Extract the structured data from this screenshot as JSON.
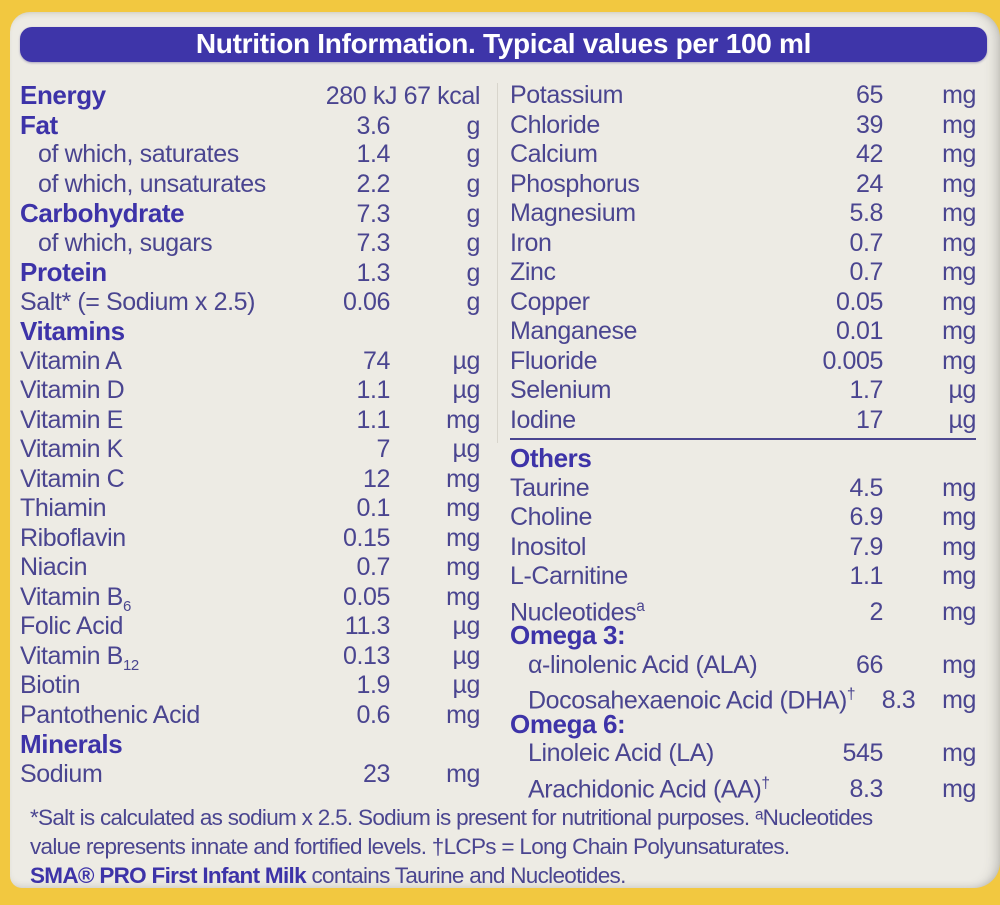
{
  "palette": {
    "packaging_yellow": "#f2c840",
    "label_cream": "#edebe4",
    "header_blue": "#3e35a9",
    "body_text": "#4a4590",
    "bold_text": "#3d33a8"
  },
  "header": {
    "title": "Nutrition Information. Typical values per 100 ml"
  },
  "columns": {
    "left": {
      "rows": [
        {
          "kind": "b",
          "label": "Energy",
          "value": "280 kJ 67 kcal",
          "unit": "",
          "wide": true
        },
        {
          "kind": "b",
          "label": "Fat",
          "value": "3.6",
          "unit": "g"
        },
        {
          "kind": "ind",
          "label": "of which, saturates",
          "value": "1.4",
          "unit": "g"
        },
        {
          "kind": "ind",
          "label": "of which, unsaturates",
          "value": "2.2",
          "unit": "g"
        },
        {
          "kind": "b",
          "label": "Carbohydrate",
          "value": "7.3",
          "unit": "g"
        },
        {
          "kind": "ind",
          "label": "of which, sugars",
          "value": "7.3",
          "unit": "g"
        },
        {
          "kind": "b",
          "label": "Protein",
          "value": "1.3",
          "unit": "g"
        },
        {
          "kind": "",
          "label": "Salt* (= Sodium x 2.5)",
          "value": "0.06",
          "unit": "g"
        },
        {
          "kind": "sec",
          "label": "Vitamins",
          "value": "",
          "unit": ""
        },
        {
          "kind": "",
          "label": "Vitamin A",
          "value": "74",
          "unit": "µg"
        },
        {
          "kind": "",
          "label": "Vitamin D",
          "value": "1.1",
          "unit": "µg"
        },
        {
          "kind": "",
          "label": "Vitamin E",
          "value": "1.1",
          "unit": "mg"
        },
        {
          "kind": "",
          "label": "Vitamin K",
          "value": "7",
          "unit": "µg"
        },
        {
          "kind": "",
          "label": "Vitamin C",
          "value": "12",
          "unit": "mg"
        },
        {
          "kind": "",
          "label": "Thiamin",
          "value": "0.1",
          "unit": "mg"
        },
        {
          "kind": "",
          "label": "Riboflavin",
          "value": "0.15",
          "unit": "mg"
        },
        {
          "kind": "",
          "label": "Niacin",
          "value": "0.7",
          "unit": "mg"
        },
        {
          "kind": "",
          "label": "Vitamin B",
          "sub": "6",
          "value": "0.05",
          "unit": "mg"
        },
        {
          "kind": "",
          "label": "Folic Acid",
          "value": "11.3",
          "unit": "µg"
        },
        {
          "kind": "",
          "label": "Vitamin B",
          "sub": "12",
          "value": "0.13",
          "unit": "µg"
        },
        {
          "kind": "",
          "label": "Biotin",
          "value": "1.9",
          "unit": "µg"
        },
        {
          "kind": "",
          "label": "Pantothenic Acid",
          "value": "0.6",
          "unit": "mg"
        },
        {
          "kind": "sec",
          "label": "Minerals",
          "value": "",
          "unit": ""
        },
        {
          "kind": "",
          "label": "Sodium",
          "value": "23",
          "unit": "mg"
        }
      ]
    },
    "right": {
      "rows": [
        {
          "kind": "",
          "label": "Potassium",
          "value": "65",
          "unit": "mg"
        },
        {
          "kind": "",
          "label": "Chloride",
          "value": "39",
          "unit": "mg"
        },
        {
          "kind": "",
          "label": "Calcium",
          "value": "42",
          "unit": "mg"
        },
        {
          "kind": "",
          "label": "Phosphorus",
          "value": "24",
          "unit": "mg"
        },
        {
          "kind": "",
          "label": "Magnesium",
          "value": "5.8",
          "unit": "mg"
        },
        {
          "kind": "",
          "label": "Iron",
          "value": "0.7",
          "unit": "mg"
        },
        {
          "kind": "",
          "label": "Zinc",
          "value": "0.7",
          "unit": "mg"
        },
        {
          "kind": "",
          "label": "Copper",
          "value": "0.05",
          "unit": "mg"
        },
        {
          "kind": "",
          "label": "Manganese",
          "value": "0.01",
          "unit": "mg"
        },
        {
          "kind": "",
          "label": "Fluoride",
          "value": "0.005",
          "unit": "mg"
        },
        {
          "kind": "",
          "label": "Selenium",
          "value": "1.7",
          "unit": "µg"
        },
        {
          "kind": "",
          "label": "Iodine",
          "value": "17",
          "unit": "µg"
        },
        {
          "kind": "divider"
        },
        {
          "kind": "sec",
          "label": "Others",
          "value": "",
          "unit": ""
        },
        {
          "kind": "",
          "label": "Taurine",
          "value": "4.5",
          "unit": "mg"
        },
        {
          "kind": "",
          "label": "Choline",
          "value": "6.9",
          "unit": "mg"
        },
        {
          "kind": "",
          "label": "Inositol",
          "value": "7.9",
          "unit": "mg"
        },
        {
          "kind": "",
          "label": "L-Carnitine",
          "value": "1.1",
          "unit": "mg"
        },
        {
          "kind": "",
          "label": "Nucleotides",
          "sup": "a",
          "value": "2",
          "unit": "mg"
        },
        {
          "kind": "sec",
          "label": "Omega 3:",
          "value": "",
          "unit": ""
        },
        {
          "kind": "ind",
          "label": "α-linolenic Acid (ALA)",
          "value": "66",
          "unit": "mg"
        },
        {
          "kind": "ind",
          "label": "Docosahexaenoic Acid (DHA)",
          "sup": "†",
          "value": "8.3",
          "unit": "mg"
        },
        {
          "kind": "sec",
          "label": "Omega 6:",
          "value": "",
          "unit": ""
        },
        {
          "kind": "ind",
          "label": "Linoleic Acid (LA)",
          "value": "545",
          "unit": "mg"
        },
        {
          "kind": "ind",
          "label": "Arachidonic Acid (AA)",
          "sup": "†",
          "value": "8.3",
          "unit": "mg"
        }
      ]
    }
  },
  "footnotes": {
    "line1": "*Salt is calculated as sodium x 2.5. Sodium is present for nutritional purposes. ᵃNucleotides",
    "line2": "value represents innate and fortified levels. †LCPs = Long Chain Polyunsaturates.",
    "product_bold": "SMA® PRO First Infant Milk",
    "product_rest": " contains Taurine and Nucleotides."
  }
}
